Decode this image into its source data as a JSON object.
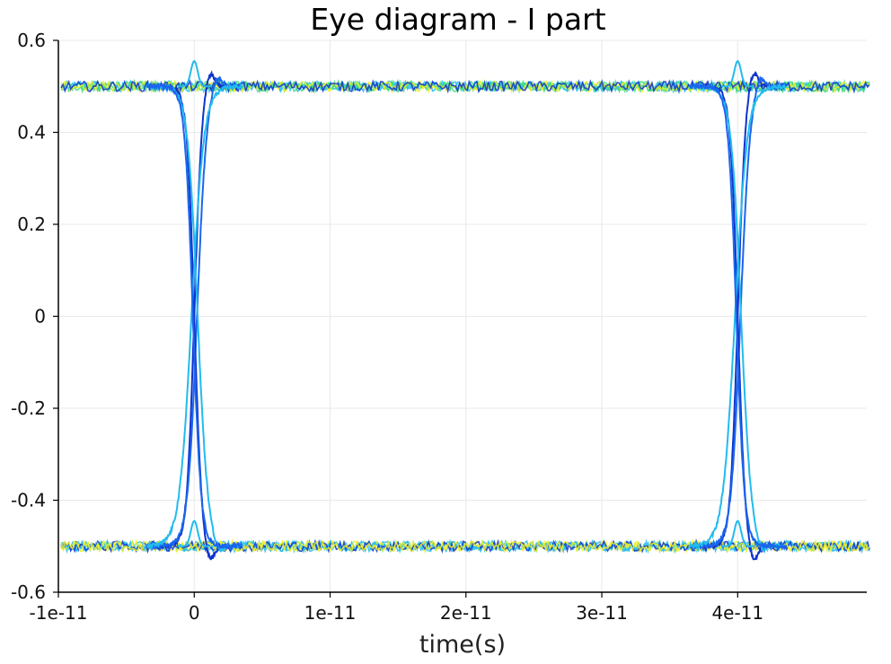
{
  "chart_data": {
    "type": "line",
    "title": "Eye diagram - I part",
    "xlabel": "time(s)",
    "ylabel": "",
    "xlim": [
      -1e-11,
      4.95e-11
    ],
    "ylim": [
      -0.6,
      0.6
    ],
    "grid": true,
    "legend": "none",
    "colormap": "density (blue low → cyan → green → yellow → red high)",
    "colors": {
      "low": "#1033cc",
      "mid_low": "#1a66ee",
      "mid": "#22bbee",
      "mid_high": "#44dd77",
      "high": "#eeee22",
      "peak": "#ee3311"
    },
    "x_ticks": [
      {
        "value": -1e-11,
        "label": "-1e-11"
      },
      {
        "value": 0,
        "label": "0"
      },
      {
        "value": 1e-11,
        "label": "1e-11"
      },
      {
        "value": 2e-11,
        "label": "2e-11"
      },
      {
        "value": 3e-11,
        "label": "3e-11"
      },
      {
        "value": 4e-11,
        "label": "4e-11"
      }
    ],
    "y_ticks": [
      {
        "value": 0.6,
        "label": "0.6"
      },
      {
        "value": 0.4,
        "label": "0.4"
      },
      {
        "value": 0.2,
        "label": "0.2"
      },
      {
        "value": 0,
        "label": "0"
      },
      {
        "value": -0.2,
        "label": "-0.2"
      },
      {
        "value": -0.4,
        "label": "-0.4"
      },
      {
        "value": -0.6,
        "label": "-0.6"
      }
    ],
    "levels": [
      0.5,
      -0.5
    ],
    "transition_times": [
      0,
      4e-11
    ],
    "series": [
      {
        "x": [
          -1e-11,
          -2e-12,
          0,
          1.5e-12,
          3e-12,
          3.8e-11,
          4e-11,
          4.15e-11,
          4.3e-11,
          4.95e-11
        ],
        "y": [
          0.5,
          0.49,
          0.0,
          -0.47,
          -0.5,
          -0.5,
          0.0,
          0.47,
          0.5,
          0.5
        ]
      },
      {
        "x": [
          -1e-11,
          -1.5e-12,
          0,
          1.5e-12,
          3e-12,
          3.8e-11,
          4e-11,
          4.15e-11,
          4.3e-11,
          4.95e-11
        ],
        "y": [
          -0.5,
          -0.49,
          0.0,
          0.53,
          0.5,
          0.5,
          0.0,
          -0.47,
          -0.5,
          -0.5
        ]
      },
      {
        "x": [
          -1e-11,
          3.8e-11,
          4e-11,
          4.15e-11,
          4.95e-11
        ],
        "y": [
          0.5,
          0.5,
          0.44,
          0.49,
          0.5
        ]
      },
      {
        "x": [
          -1e-11,
          -1e-12,
          0,
          1e-12,
          4.95e-11
        ],
        "y": [
          -0.5,
          -0.5,
          -0.56,
          -0.5,
          -0.5
        ]
      }
    ]
  }
}
